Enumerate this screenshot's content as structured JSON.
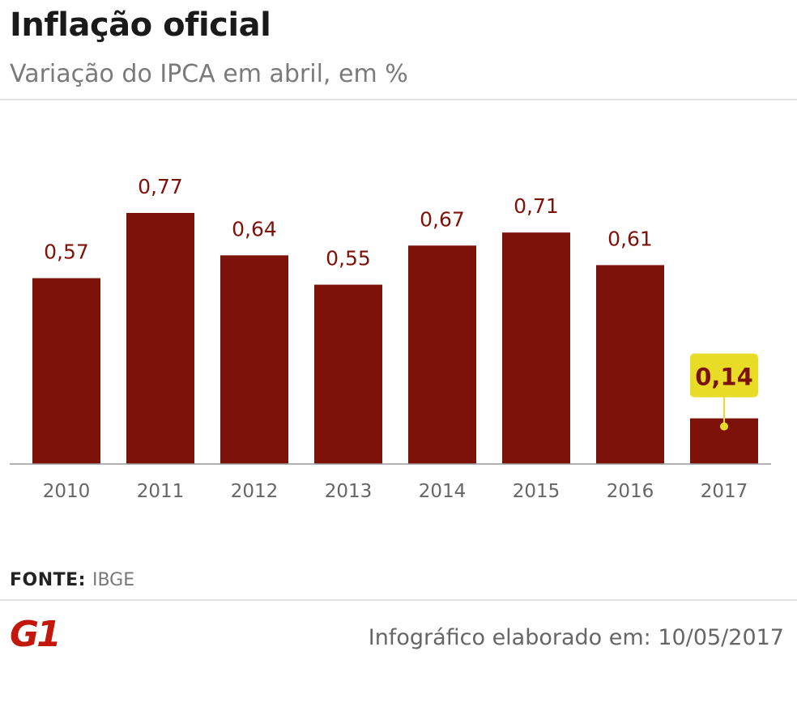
{
  "header": {
    "title": "Inflação oficial",
    "subtitle": "Variação do IPCA em abril, em %"
  },
  "chart_data": {
    "type": "bar",
    "title": "Inflação oficial",
    "subtitle": "Variação do IPCA em abril, em %",
    "categories": [
      "2010",
      "2011",
      "2012",
      "2013",
      "2014",
      "2015",
      "2016",
      "2017"
    ],
    "values": [
      0.57,
      0.77,
      0.64,
      0.55,
      0.67,
      0.71,
      0.61,
      0.14
    ],
    "value_labels": [
      "0,57",
      "0,77",
      "0,64",
      "0,55",
      "0,67",
      "0,71",
      "0,61",
      "0,14"
    ],
    "highlight_index": 7,
    "ylim": [
      0,
      0.77
    ],
    "grid": false,
    "colors": {
      "bar": "#7d120b",
      "label": "#7d120b",
      "highlight_box": "#e8dc27",
      "tick": "#666666"
    }
  },
  "footer": {
    "source_label": "FONTE:",
    "source_value": "IBGE",
    "logo": "G1",
    "credit": "Infográfico elaborado em: 10/05/2017"
  }
}
